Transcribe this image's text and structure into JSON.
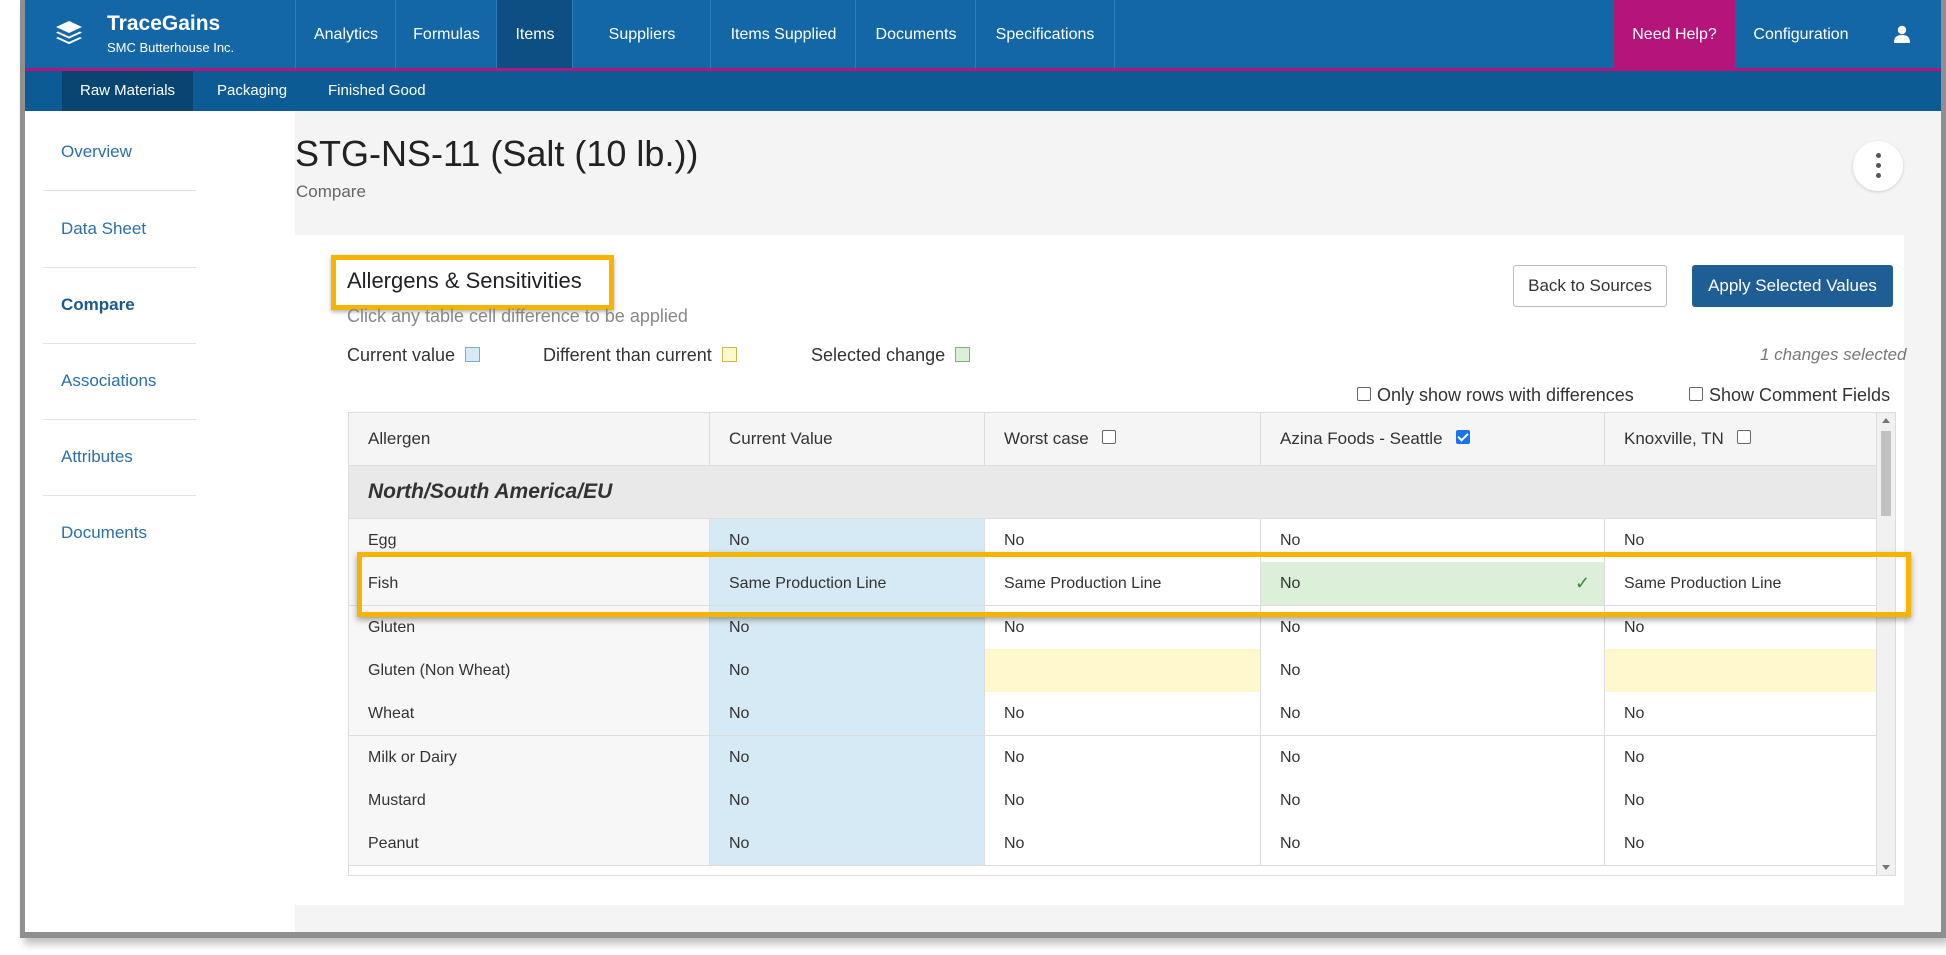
{
  "brand": {
    "name": "TraceGains",
    "subtitle": "SMC Butterhouse Inc."
  },
  "topnav": {
    "items": [
      "Analytics",
      "Formulas",
      "Items",
      "Suppliers",
      "Items Supplied",
      "Documents",
      "Specifications"
    ],
    "active": "Items",
    "help": "Need Help?",
    "config": "Configuration"
  },
  "subnav": {
    "items": [
      "Raw Materials",
      "Packaging",
      "Finished Good"
    ],
    "active": "Raw Materials"
  },
  "sidebar": {
    "items": [
      "Overview",
      "Data Sheet",
      "Compare",
      "Associations",
      "Attributes",
      "Documents"
    ],
    "active": "Compare"
  },
  "page": {
    "title": "STG-NS-11 (Salt (10 lb.))",
    "subtitle": "Compare"
  },
  "section": {
    "title": "Allergens & Sensitivities",
    "hint": "Click any table cell difference to be applied",
    "back_button": "Back to Sources",
    "apply_button": "Apply Selected Values",
    "changes": "1 changes selected"
  },
  "legend": {
    "current": "Current value",
    "different": "Different than current",
    "selected": "Selected change"
  },
  "options": {
    "only_diff": "Only show rows with differences",
    "show_comments": "Show Comment Fields"
  },
  "colors": {
    "current": "#d6eaf5",
    "different": "#fef8cc",
    "selected": "#dcefd8",
    "highlight": "#f4b400",
    "nav": "#1467a6",
    "help": "#b5157b"
  },
  "table": {
    "headers": [
      "Allergen",
      "Current Value",
      "Worst case",
      "Azina Foods - Seattle",
      "Knoxville, TN"
    ],
    "header_checked": [
      false,
      true,
      false
    ],
    "group": "North/South America/EU",
    "rows": [
      {
        "cells": [
          "Egg",
          "No",
          "No",
          "No",
          "No"
        ]
      },
      {
        "cells": [
          "Fish",
          "Same Production Line",
          "Same Production Line",
          "No",
          "Same Production Line"
        ]
      },
      {
        "cells": [
          "Gluten",
          "No",
          "No",
          "No",
          "No"
        ]
      },
      {
        "cells": [
          "Gluten (Non Wheat)",
          "No",
          "",
          "No",
          ""
        ]
      },
      {
        "cells": [
          "Wheat",
          "No",
          "No",
          "No",
          "No"
        ]
      },
      {
        "cells": [
          "Milk or Dairy",
          "No",
          "No",
          "No",
          "No"
        ]
      },
      {
        "cells": [
          "Mustard",
          "No",
          "No",
          "No",
          "No"
        ]
      },
      {
        "cells": [
          "Peanut",
          "No",
          "No",
          "No",
          "No"
        ]
      }
    ],
    "check_mark": "✓"
  }
}
